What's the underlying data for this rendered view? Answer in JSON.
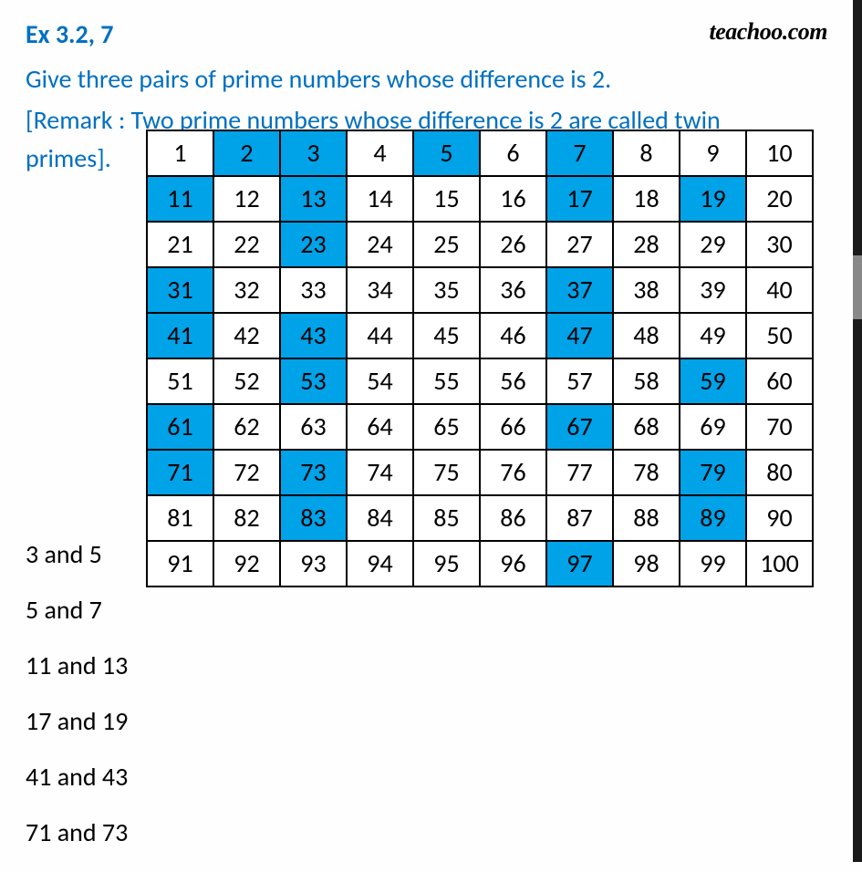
{
  "header": {
    "title": "Ex 3.2, 7",
    "logo": "teachoo.com"
  },
  "question": "Give three pairs of prime numbers whose difference is 2.",
  "remark_line1": "[Remark : Two prime numbers whose difference is 2 are called twin",
  "remark_line2": "primes].",
  "table": {
    "rows": 10,
    "cols": 10,
    "cell_bg": "#ffffff",
    "prime_bg": "#00a2e8",
    "border_color": "#000000",
    "font_size": 28,
    "primes": [
      2,
      3,
      5,
      7,
      11,
      13,
      17,
      19,
      23,
      31,
      37,
      41,
      43,
      47,
      53,
      59,
      61,
      67,
      71,
      73,
      79,
      83,
      89,
      97
    ]
  },
  "answers": [
    "3 and 5",
    "5 and 7",
    "11 and 13",
    "17 and 19",
    "41 and 43",
    "71 and 73"
  ],
  "colors": {
    "title": "#0070c0",
    "text": "#000000",
    "background": "#fefefe"
  }
}
